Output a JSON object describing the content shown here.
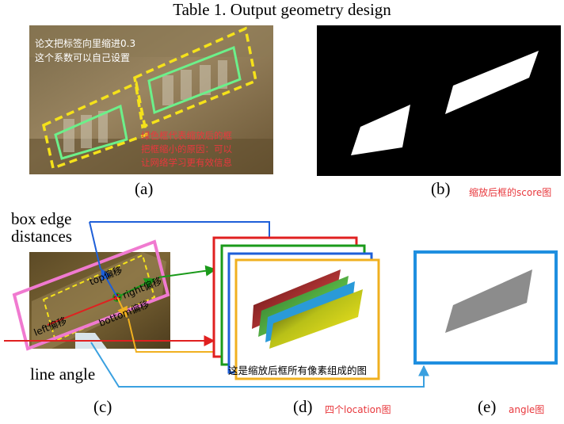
{
  "title": "Table 1. Output geometry design",
  "panels": {
    "a": {
      "label": "(a)",
      "note_white": [
        "论文把标签向里缩进0.3",
        "这个系数可以自己设置"
      ],
      "note_red": [
        "绿色框代表缩放后的框",
        "把框缩小的原因：可以",
        "让网络学习更有效信息"
      ]
    },
    "b": {
      "label": "(b)",
      "note": "缩放后框的score图"
    },
    "c": {
      "label": "(c)",
      "box_edge": [
        "box edge",
        "distances"
      ],
      "line_angle": "line angle",
      "top": "top偏移",
      "right": "right偏移",
      "bottom": "bottom偏移",
      "left": "left偏移"
    },
    "d": {
      "label": "(d)",
      "note": "四个location图",
      "caption": "这是缩放后框所有像素组成的图"
    },
    "e": {
      "label": "(e)",
      "note": "angle图"
    }
  },
  "colors": {
    "yellow_dash": "#f5e21a",
    "green_box": "#6cf08a",
    "pink_box": "#f07ad0",
    "red": "#e02020",
    "green_arrow": "#1a9a1a",
    "blue_arrow": "#1e5fd8",
    "orange": "#f0b020",
    "light_blue": "#3aa0e0"
  }
}
